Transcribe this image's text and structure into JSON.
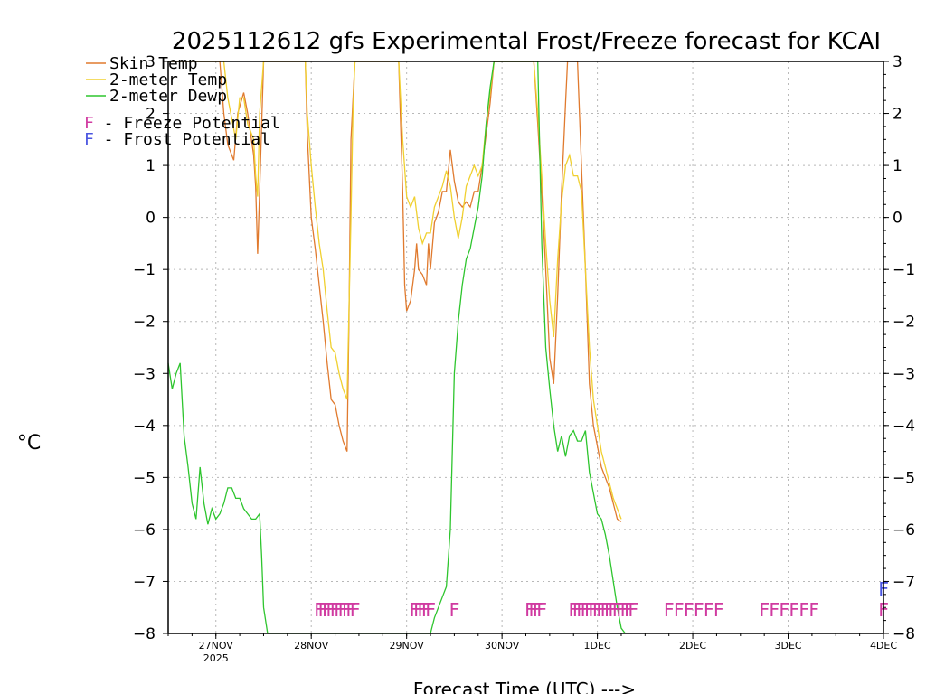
{
  "chart_data": {
    "type": "line",
    "title": "2025112612 gfs Experimental Frost/Freeze forecast for KCAI",
    "ylabel": "°C",
    "xlabel": "Forecast Time (UTC) --->",
    "xlim": [
      0,
      180
    ],
    "ylim": [
      -8,
      3
    ],
    "y_ticks": [
      3,
      2,
      1,
      0,
      -1,
      -2,
      -3,
      -4,
      -5,
      -6,
      -7,
      -8
    ],
    "x_ticks": [
      {
        "t": 12,
        "label": "27NOV",
        "sub": "2025"
      },
      {
        "t": 36,
        "label": "28NOV",
        "sub": ""
      },
      {
        "t": 60,
        "label": "29NOV",
        "sub": ""
      },
      {
        "t": 84,
        "label": "30NOV",
        "sub": ""
      },
      {
        "t": 108,
        "label": "1DEC",
        "sub": ""
      },
      {
        "t": 132,
        "label": "2DEC",
        "sub": ""
      },
      {
        "t": 156,
        "label": "3DEC",
        "sub": ""
      },
      {
        "t": 180,
        "label": "4DEC",
        "sub": ""
      }
    ],
    "grid": true,
    "series": [
      {
        "name": "Skin Temp",
        "color": "#e07a2e",
        "points": [
          [
            0,
            3
          ],
          [
            5,
            3
          ],
          [
            13,
            3
          ],
          [
            14,
            2
          ],
          [
            15,
            1.4
          ],
          [
            16.5,
            1.1
          ],
          [
            17.5,
            2.0
          ],
          [
            19,
            2.4
          ],
          [
            20,
            2.0
          ],
          [
            21.5,
            1.2
          ],
          [
            22,
            0.6
          ],
          [
            22.5,
            -0.7
          ],
          [
            23,
            0.5
          ],
          [
            24,
            3
          ],
          [
            34.5,
            3
          ],
          [
            35,
            1.6
          ],
          [
            36,
            0.0
          ],
          [
            37,
            -0.6
          ],
          [
            38,
            -1.3
          ],
          [
            39,
            -2.0
          ],
          [
            40,
            -2.8
          ],
          [
            41,
            -3.5
          ],
          [
            42,
            -3.6
          ],
          [
            43,
            -4.0
          ],
          [
            44,
            -4.3
          ],
          [
            45,
            -4.5
          ],
          [
            45.5,
            -2.0
          ],
          [
            46,
            1.5
          ],
          [
            47,
            3
          ],
          [
            58,
            3
          ],
          [
            59,
            0.5
          ],
          [
            59.5,
            -1.3
          ],
          [
            60,
            -1.8
          ],
          [
            61,
            -1.6
          ],
          [
            62,
            -1.0
          ],
          [
            62.5,
            -0.5
          ],
          [
            63,
            -1.0
          ],
          [
            64,
            -1.1
          ],
          [
            65,
            -1.3
          ],
          [
            65.5,
            -0.5
          ],
          [
            66,
            -1.0
          ],
          [
            67,
            -0.1
          ],
          [
            68,
            0.1
          ],
          [
            69,
            0.5
          ],
          [
            70,
            0.5
          ],
          [
            71,
            1.3
          ],
          [
            72,
            0.7
          ],
          [
            73,
            0.3
          ],
          [
            74,
            0.2
          ],
          [
            75,
            0.3
          ],
          [
            76,
            0.2
          ],
          [
            77,
            0.5
          ],
          [
            78,
            0.5
          ],
          [
            79,
            1.0
          ],
          [
            80,
            1.6
          ],
          [
            81,
            2.2
          ],
          [
            82,
            3
          ],
          [
            92,
            3
          ],
          [
            93,
            1.8
          ],
          [
            94,
            0.5
          ],
          [
            95,
            -1.0
          ],
          [
            96,
            -2.7
          ],
          [
            97,
            -3.2
          ],
          [
            98,
            -1.5
          ],
          [
            99,
            0.5
          ],
          [
            100,
            2.2
          ],
          [
            100.5,
            3
          ],
          [
            103,
            3
          ],
          [
            104,
            1.0
          ],
          [
            105,
            -1.0
          ],
          [
            106,
            -3.2
          ],
          [
            107,
            -4.0
          ],
          [
            108,
            -4.4
          ],
          [
            109,
            -4.8
          ],
          [
            110,
            -5.0
          ],
          [
            111,
            -5.2
          ],
          [
            112,
            -5.5
          ],
          [
            113,
            -5.8
          ],
          [
            114,
            -5.85
          ]
        ]
      },
      {
        "name": "2-meter Temp",
        "color": "#f0d030",
        "points": [
          [
            0,
            3
          ],
          [
            14,
            3
          ],
          [
            15,
            2.3
          ],
          [
            16,
            1.9
          ],
          [
            17,
            1.5
          ],
          [
            18,
            2.3
          ],
          [
            19,
            2.3
          ],
          [
            20,
            1.8
          ],
          [
            21.5,
            1.5
          ],
          [
            22,
            0.8
          ],
          [
            22.5,
            0.4
          ],
          [
            23,
            2.0
          ],
          [
            24,
            3
          ],
          [
            34.5,
            3
          ],
          [
            35,
            2.0
          ],
          [
            36,
            1.0
          ],
          [
            37,
            0.2
          ],
          [
            38,
            -0.5
          ],
          [
            39,
            -1.0
          ],
          [
            40,
            -1.8
          ],
          [
            41,
            -2.5
          ],
          [
            42,
            -2.6
          ],
          [
            43,
            -3.0
          ],
          [
            44,
            -3.3
          ],
          [
            45,
            -3.5
          ],
          [
            46,
            0.0
          ],
          [
            46.5,
            2.0
          ],
          [
            47,
            3
          ],
          [
            58,
            3
          ],
          [
            59,
            1.5
          ],
          [
            60,
            0.4
          ],
          [
            61,
            0.2
          ],
          [
            62,
            0.4
          ],
          [
            63,
            -0.2
          ],
          [
            64,
            -0.5
          ],
          [
            65,
            -0.3
          ],
          [
            66,
            -0.3
          ],
          [
            67,
            0.2
          ],
          [
            68,
            0.4
          ],
          [
            69,
            0.6
          ],
          [
            70,
            0.9
          ],
          [
            71,
            0.6
          ],
          [
            72,
            0.0
          ],
          [
            73,
            -0.4
          ],
          [
            74,
            0.0
          ],
          [
            75,
            0.6
          ],
          [
            76,
            0.8
          ],
          [
            77,
            1.0
          ],
          [
            78,
            0.8
          ],
          [
            79,
            1.0
          ],
          [
            80,
            1.8
          ],
          [
            81,
            2.4
          ],
          [
            82,
            3
          ],
          [
            92,
            3
          ],
          [
            93,
            2.0
          ],
          [
            94,
            0.8
          ],
          [
            95,
            -0.5
          ],
          [
            96,
            -1.6
          ],
          [
            97,
            -2.3
          ],
          [
            98,
            -0.8
          ],
          [
            99,
            0.3
          ],
          [
            100,
            1.0
          ],
          [
            101,
            1.2
          ],
          [
            102,
            0.8
          ],
          [
            103,
            0.8
          ],
          [
            104,
            0.5
          ],
          [
            105,
            -1.0
          ],
          [
            106,
            -2.5
          ],
          [
            107,
            -3.5
          ],
          [
            108,
            -4.0
          ],
          [
            109,
            -4.5
          ],
          [
            110,
            -4.8
          ],
          [
            111,
            -5.1
          ],
          [
            112,
            -5.4
          ],
          [
            113,
            -5.6
          ],
          [
            114,
            -5.8
          ]
        ]
      },
      {
        "name": "2-meter Dewp",
        "color": "#2ec52e",
        "points": [
          [
            0,
            -2.8
          ],
          [
            1,
            -3.3
          ],
          [
            2,
            -3.0
          ],
          [
            3,
            -2.8
          ],
          [
            4,
            -4.2
          ],
          [
            5,
            -4.8
          ],
          [
            6,
            -5.5
          ],
          [
            7,
            -5.8
          ],
          [
            8,
            -4.8
          ],
          [
            9,
            -5.5
          ],
          [
            10,
            -5.9
          ],
          [
            11,
            -5.6
          ],
          [
            12,
            -5.8
          ],
          [
            13,
            -5.7
          ],
          [
            14,
            -5.5
          ],
          [
            15,
            -5.2
          ],
          [
            16,
            -5.2
          ],
          [
            17,
            -5.4
          ],
          [
            18,
            -5.4
          ],
          [
            19,
            -5.6
          ],
          [
            20,
            -5.7
          ],
          [
            21,
            -5.8
          ],
          [
            22,
            -5.8
          ],
          [
            23,
            -5.7
          ],
          [
            23.5,
            -6.5
          ],
          [
            24,
            -7.5
          ],
          [
            25,
            -8
          ],
          [
            66,
            -8
          ],
          [
            67,
            -7.7
          ],
          [
            68,
            -7.5
          ],
          [
            69,
            -7.3
          ],
          [
            70,
            -7.1
          ],
          [
            71,
            -6.0
          ],
          [
            72,
            -3.0
          ],
          [
            73,
            -2.0
          ],
          [
            74,
            -1.3
          ],
          [
            75,
            -0.8
          ],
          [
            76,
            -0.6
          ],
          [
            77,
            -0.2
          ],
          [
            78,
            0.2
          ],
          [
            79,
            0.8
          ],
          [
            80,
            1.8
          ],
          [
            81,
            2.5
          ],
          [
            82,
            3
          ],
          [
            93,
            3
          ],
          [
            94,
            -0.5
          ],
          [
            95,
            -2.5
          ],
          [
            96,
            -3.3
          ],
          [
            97,
            -4.0
          ],
          [
            98,
            -4.5
          ],
          [
            99,
            -4.2
          ],
          [
            100,
            -4.6
          ],
          [
            101,
            -4.2
          ],
          [
            102,
            -4.1
          ],
          [
            103,
            -4.3
          ],
          [
            104,
            -4.3
          ],
          [
            105,
            -4.1
          ],
          [
            106,
            -4.9
          ],
          [
            107,
            -5.3
          ],
          [
            108,
            -5.7
          ],
          [
            109,
            -5.8
          ],
          [
            110,
            -6.1
          ],
          [
            111,
            -6.5
          ],
          [
            112,
            -7.0
          ],
          [
            113,
            -7.5
          ],
          [
            114,
            -7.9
          ],
          [
            115,
            -8
          ]
        ]
      }
    ],
    "legend": {
      "position": "top-left",
      "entries": [
        "Skin Temp",
        "2-meter Temp",
        "2-meter Dewp"
      ],
      "markers": [
        {
          "label": "F - Freeze Potential",
          "color": "#d03aa0"
        },
        {
          "label": "F - Frost Potential",
          "color": "#4a55e0"
        }
      ]
    },
    "freeze_markers": {
      "color": "#d03aa0",
      "y": -7.55,
      "text": "F",
      "times": [
        38,
        39,
        40,
        41,
        42,
        43,
        44,
        45,
        46,
        47,
        62,
        63,
        64,
        65,
        66,
        72,
        91,
        92,
        93,
        94,
        102,
        103,
        104,
        105,
        106,
        107,
        108,
        109,
        110,
        111,
        112,
        113,
        114,
        115,
        116,
        117,
        126,
        128.5,
        131,
        133.5,
        136,
        138.5,
        150,
        152.5,
        155,
        157.5,
        160,
        162.5,
        180
      ]
    },
    "frost_markers": {
      "color": "#4a55e0",
      "y": -7.15,
      "text": "F",
      "times": [
        180
      ]
    }
  }
}
